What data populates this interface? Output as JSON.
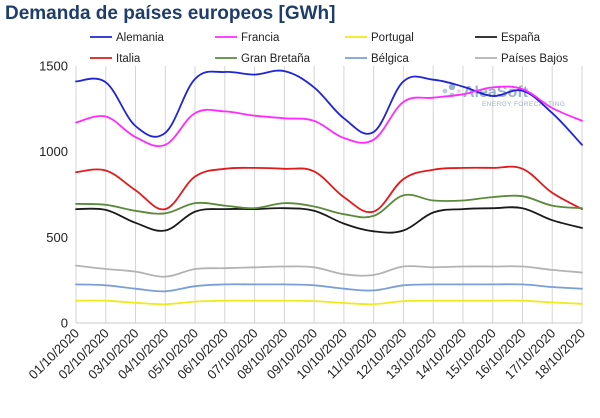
{
  "chart_data": {
    "type": "line",
    "title": "Demanda de países europeos [GWh]",
    "xlabel": "",
    "ylabel": "",
    "ylim": [
      0,
      1500
    ],
    "yticks": [
      0,
      500,
      1000,
      1500
    ],
    "grid": {
      "vertical": true,
      "horizontal": false
    },
    "legend_position": "top",
    "categories": [
      "01/10/2020",
      "02/10/2020",
      "03/10/2020",
      "04/10/2020",
      "05/10/2020",
      "06/10/2020",
      "07/10/2020",
      "08/10/2020",
      "09/10/2020",
      "10/10/2020",
      "11/10/2020",
      "12/10/2020",
      "13/10/2020",
      "14/10/2020",
      "15/10/2020",
      "16/10/2020",
      "17/10/2020",
      "18/10/2020"
    ],
    "series": [
      {
        "name": "Alemania",
        "color": "#1f24d6",
        "values": [
          1410,
          1405,
          1150,
          1110,
          1425,
          1465,
          1450,
          1470,
          1375,
          1195,
          1115,
          1410,
          1420,
          1380,
          1325,
          1355,
          1225,
          1040
        ]
      },
      {
        "name": "Francia",
        "color": "#ff2bff",
        "values": [
          1170,
          1205,
          1085,
          1040,
          1225,
          1235,
          1210,
          1195,
          1180,
          1080,
          1070,
          1290,
          1315,
          1335,
          1375,
          1365,
          1255,
          1180
        ]
      },
      {
        "name": "Portugal",
        "color": "#f0ea1c",
        "values": [
          130,
          130,
          118,
          110,
          125,
          130,
          130,
          130,
          128,
          117,
          110,
          128,
          130,
          130,
          130,
          130,
          120,
          112
        ]
      },
      {
        "name": "España",
        "color": "#1a1a1a",
        "values": [
          665,
          660,
          585,
          540,
          650,
          665,
          665,
          670,
          655,
          580,
          535,
          540,
          645,
          665,
          670,
          670,
          600,
          555
        ]
      },
      {
        "name": "Italia",
        "color": "#e31a1c",
        "values": [
          880,
          890,
          775,
          665,
          855,
          900,
          905,
          900,
          885,
          735,
          650,
          840,
          895,
          905,
          905,
          900,
          760,
          665
        ]
      },
      {
        "name": "Gran Bretaña",
        "color": "#5b8a3c",
        "values": [
          695,
          690,
          655,
          640,
          700,
          685,
          670,
          700,
          680,
          635,
          625,
          745,
          715,
          715,
          735,
          740,
          685,
          670
        ]
      },
      {
        "name": "Bélgica",
        "color": "#7a9fd8",
        "values": [
          225,
          220,
          200,
          185,
          215,
          225,
          225,
          225,
          220,
          200,
          190,
          220,
          225,
          225,
          225,
          225,
          210,
          200
        ]
      },
      {
        "name": "Países Bajos",
        "color": "#b3b3b3",
        "values": [
          335,
          315,
          300,
          270,
          315,
          320,
          325,
          330,
          325,
          285,
          280,
          330,
          325,
          330,
          330,
          330,
          310,
          295
        ]
      }
    ]
  },
  "logo": {
    "main": "AleaSoft",
    "sub": "ENERGY FORECASTING"
  }
}
